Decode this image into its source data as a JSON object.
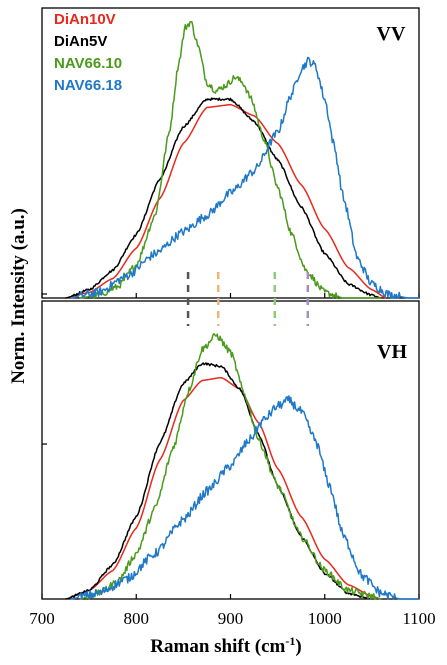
{
  "chart_data": {
    "type": "line",
    "xlabel": "Raman shift (cm",
    "xlabel_sup": "-1",
    "xlabel_tail": ")",
    "ylabel": "Norm. Intensity (a.u.)",
    "xlim": [
      700,
      1100
    ],
    "x_ticks": [
      700,
      800,
      900,
      1000,
      1100
    ],
    "x_tick_labels": [
      "700",
      "800",
      "900",
      "1000",
      "1100"
    ],
    "grid": false,
    "legend_position": "top-left",
    "markers": [
      {
        "x": 855,
        "color": "#555555"
      },
      {
        "x": 887,
        "color": "#f2b27a"
      },
      {
        "x": 947,
        "color": "#8ec97a"
      },
      {
        "x": 982,
        "color": "#a98cc0"
      }
    ],
    "series": [
      {
        "name": "DiAn10V",
        "color": "#e8291c"
      },
      {
        "name": "DiAn5V",
        "color": "#000000"
      },
      {
        "name": "NAV66.10",
        "color": "#4a9a1c"
      },
      {
        "name": "NAV66.18",
        "color": "#1f78c8"
      }
    ],
    "panels": [
      {
        "label": "VV",
        "ylim": [
          0,
          1.05
        ],
        "series": [
          {
            "name": "DiAn10V",
            "x": [
              725,
              750,
              775,
              800,
              825,
              850,
              875,
              900,
              925,
              950,
              975,
              1000,
              1025,
              1050,
              1065
            ],
            "y": [
              0.0,
              0.02,
              0.07,
              0.18,
              0.36,
              0.56,
              0.69,
              0.7,
              0.66,
              0.56,
              0.41,
              0.25,
              0.11,
              0.03,
              0.0
            ]
          },
          {
            "name": "DiAn5V",
            "x": [
              725,
              750,
              775,
              800,
              825,
              850,
              875,
              900,
              925,
              950,
              975,
              1000,
              1025,
              1050,
              1060
            ],
            "y": [
              0.0,
              0.03,
              0.1,
              0.23,
              0.43,
              0.62,
              0.72,
              0.72,
              0.64,
              0.5,
              0.33,
              0.16,
              0.05,
              0.01,
              0.0
            ]
          },
          {
            "name": "NAV66.10",
            "x": [
              740,
              760,
              780,
              800,
              820,
              835,
              845,
              852,
              858,
              865,
              875,
              885,
              895,
              905,
              913,
              922,
              935,
              950,
              965,
              980,
              1000,
              1020,
              1040,
              1060
            ],
            "y": [
              0.0,
              0.01,
              0.04,
              0.12,
              0.3,
              0.6,
              0.85,
              0.98,
              1.0,
              0.92,
              0.78,
              0.75,
              0.77,
              0.8,
              0.78,
              0.72,
              0.58,
              0.4,
              0.23,
              0.1,
              0.02,
              0.0,
              0.0,
              0.0
            ]
          },
          {
            "name": "NAV66.18",
            "x": [
              730,
              760,
              790,
              820,
              850,
              875,
              900,
              925,
              950,
              965,
              975,
              983,
              990,
              1000,
              1010,
              1020,
              1035,
              1050,
              1070,
              1090,
              1100
            ],
            "y": [
              0.0,
              0.02,
              0.08,
              0.16,
              0.24,
              0.3,
              0.38,
              0.46,
              0.6,
              0.74,
              0.83,
              0.86,
              0.84,
              0.72,
              0.55,
              0.36,
              0.14,
              0.05,
              0.01,
              0.0,
              0.0
            ]
          }
        ]
      },
      {
        "label": "VH",
        "ylim": [
          0,
          1.05
        ],
        "series": [
          {
            "name": "DiAn10V",
            "x": [
              725,
              750,
              775,
              800,
              825,
              850,
              870,
              890,
              910,
              930,
              950,
              975,
              1000,
              1025,
              1050,
              1060
            ],
            "y": [
              0.0,
              0.03,
              0.1,
              0.25,
              0.49,
              0.7,
              0.77,
              0.78,
              0.74,
              0.62,
              0.46,
              0.29,
              0.14,
              0.05,
              0.01,
              0.0
            ]
          },
          {
            "name": "DiAn5V",
            "x": [
              725,
              750,
              775,
              800,
              825,
              850,
              870,
              890,
              910,
              930,
              950,
              975,
              1000,
              1025,
              1050
            ],
            "y": [
              0.0,
              0.03,
              0.12,
              0.29,
              0.55,
              0.76,
              0.83,
              0.82,
              0.74,
              0.58,
              0.4,
              0.22,
              0.09,
              0.02,
              0.0
            ]
          },
          {
            "name": "NAV66.10",
            "x": [
              740,
              760,
              780,
              800,
              820,
              840,
              855,
              870,
              885,
              900,
              915,
              930,
              950,
              975,
              1000,
              1025,
              1050,
              1060
            ],
            "y": [
              0.0,
              0.02,
              0.06,
              0.16,
              0.32,
              0.54,
              0.73,
              0.88,
              0.93,
              0.87,
              0.72,
              0.56,
              0.4,
              0.22,
              0.1,
              0.03,
              0.01,
              0.0
            ]
          },
          {
            "name": "NAV66.18",
            "x": [
              730,
              760,
              790,
              820,
              850,
              875,
              900,
              920,
              935,
              950,
              962,
              975,
              990,
              1005,
              1020,
              1040,
              1060,
              1080,
              1100
            ],
            "y": [
              0.0,
              0.02,
              0.07,
              0.16,
              0.28,
              0.38,
              0.47,
              0.56,
              0.63,
              0.68,
              0.7,
              0.66,
              0.56,
              0.4,
              0.22,
              0.08,
              0.02,
              0.0,
              0.0
            ]
          }
        ]
      }
    ]
  }
}
